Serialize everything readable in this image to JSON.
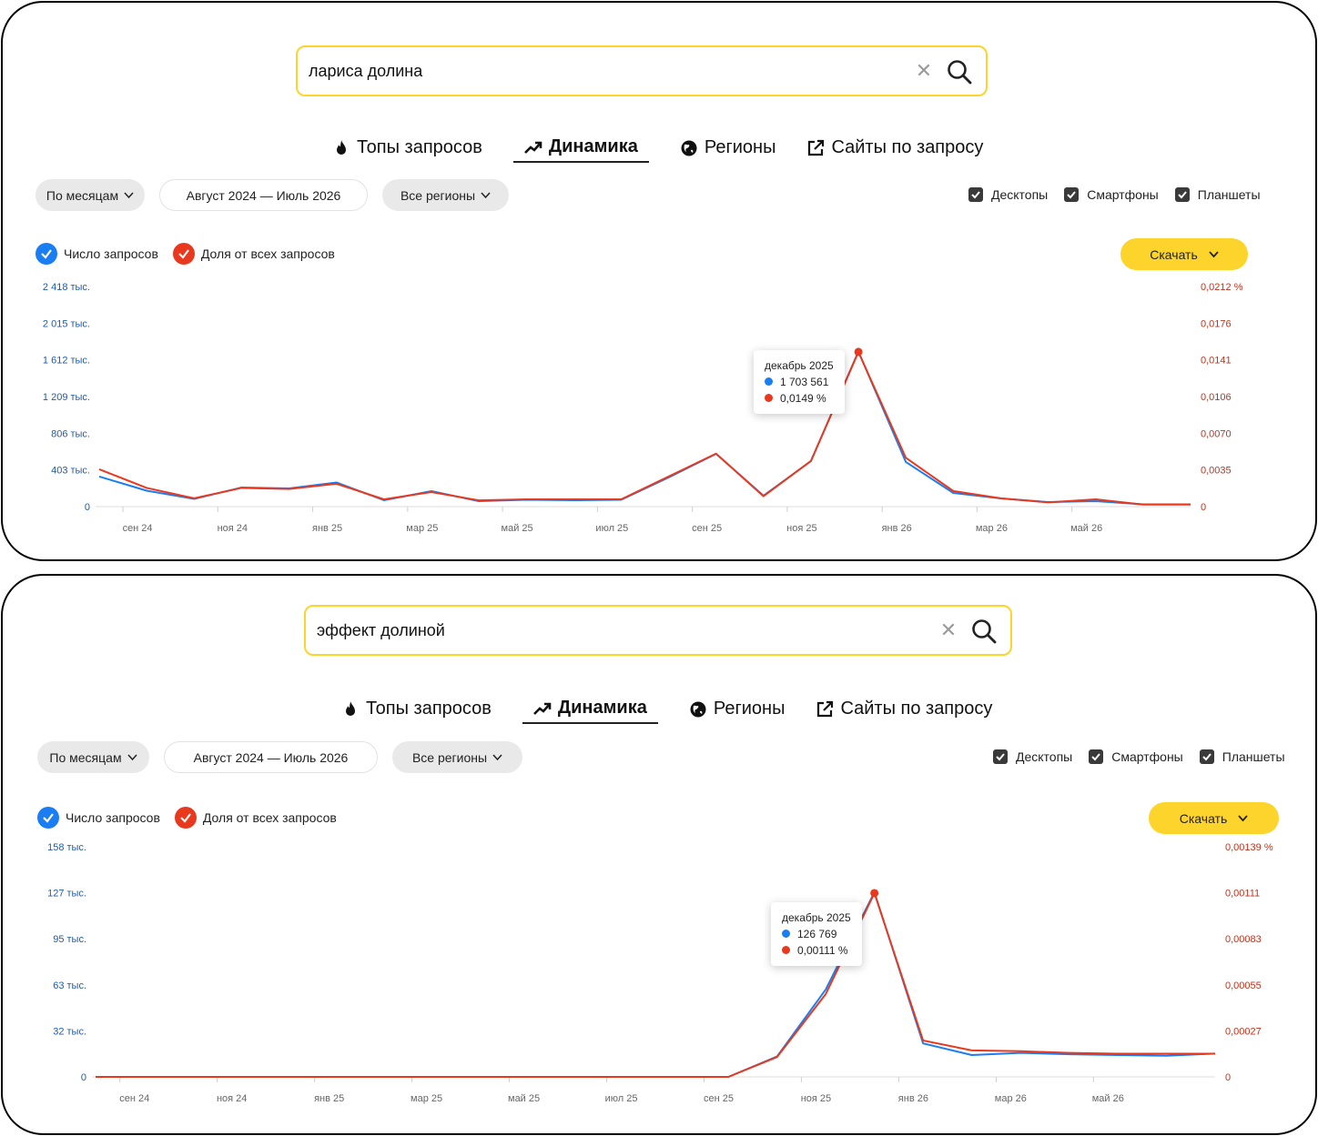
{
  "colors": {
    "count": "#1a7ef2",
    "share": "#e8391f",
    "accent": "#fdd42c"
  },
  "tabs": [
    {
      "label": "Топы запросов",
      "icon": "fire-icon"
    },
    {
      "label": "Динамика",
      "icon": "trend-icon",
      "active": true
    },
    {
      "label": "Регионы",
      "icon": "globe-icon"
    },
    {
      "label": "Сайты по запросу",
      "icon": "external-link-icon"
    }
  ],
  "panels": [
    {
      "search": {
        "value": "лариса долина"
      },
      "filters": {
        "period": "По месяцам",
        "range": "Август 2024 — Июль 2026",
        "regions": "Все регионы"
      },
      "devices": [
        "Десктопы",
        "Смартфоны",
        "Планшеты"
      ],
      "legend": {
        "count": "Число запросов",
        "share": "Доля от всех запросов"
      },
      "download": "Скачать",
      "tooltip": {
        "month": "декабрь 2025",
        "count": "1 703 561",
        "share": "0,0149 %"
      },
      "chart_data": {
        "type": "line",
        "x": [
          "авг 24",
          "сен 24",
          "окт 24",
          "ноя 24",
          "дек 24",
          "янв 25",
          "фев 25",
          "мар 25",
          "апр 25",
          "май 25",
          "июн 25",
          "июл 25",
          "авг 25",
          "сен 25",
          "окт 25",
          "ноя 25",
          "дек 25",
          "янв 26",
          "фев 26",
          "мар 26",
          "апр 26",
          "май 26",
          "июн 26",
          "июл 26"
        ],
        "x_ticks": [
          "сен 24",
          "ноя 24",
          "янв 25",
          "мар 25",
          "май 25",
          "июл 25",
          "сен 25",
          "ноя 25",
          "янв 26",
          "мар 26",
          "май 26"
        ],
        "y_left_ticks": [
          "0",
          "403 тыс.",
          "806 тыс.",
          "1 209 тыс.",
          "1 612 тыс.",
          "2 015 тыс.",
          "2 418 тыс."
        ],
        "y_right_ticks": [
          "0",
          "0,0035",
          "0,0070",
          "0,0106",
          "0,0141",
          "0,0176",
          "0,0212 %"
        ],
        "ylim_left": [
          0,
          2418000
        ],
        "ylim_right": [
          0,
          0.0212
        ],
        "series": [
          {
            "name": "Число запросов",
            "axis": "left",
            "values": [
              330000,
              175000,
              85000,
              210000,
              200000,
              265000,
              70000,
              170000,
              60000,
              75000,
              70000,
              75000,
              320000,
              580000,
              120000,
              500000,
              1703561,
              490000,
              150000,
              90000,
              50000,
              60000,
              25000,
              25000
            ]
          },
          {
            "name": "Доля от всех запросов",
            "axis": "right",
            "values": [
              0.0036,
              0.0018,
              0.0008,
              0.0018,
              0.0017,
              0.0022,
              0.0007,
              0.0014,
              0.0006,
              0.0007,
              0.0007,
              0.0007,
              0.0029,
              0.0051,
              0.001,
              0.0044,
              0.0149,
              0.0047,
              0.0015,
              0.0008,
              0.0004,
              0.0007,
              0.0002,
              0.0002
            ]
          }
        ]
      }
    },
    {
      "search": {
        "value": "эффект долиной"
      },
      "filters": {
        "period": "По месяцам",
        "range": "Август 2024 — Июль 2026",
        "regions": "Все регионы"
      },
      "devices": [
        "Десктопы",
        "Смартфоны",
        "Планшеты"
      ],
      "legend": {
        "count": "Число запросов",
        "share": "Доля от всех запросов"
      },
      "download": "Скачать",
      "tooltip": {
        "month": "декабрь 2025",
        "count": "126 769",
        "share": "0,00111 %"
      },
      "chart_data": {
        "type": "line",
        "x": [
          "авг 24",
          "сен 24",
          "окт 24",
          "ноя 24",
          "дек 24",
          "янв 25",
          "фев 25",
          "мар 25",
          "апр 25",
          "май 25",
          "июн 25",
          "июл 25",
          "авг 25",
          "сен 25",
          "окт 25",
          "ноя 25",
          "дек 25",
          "янв 26",
          "фев 26",
          "мар 26",
          "апр 26",
          "май 26",
          "июн 26",
          "июл 26"
        ],
        "x_ticks": [
          "сен 24",
          "ноя 24",
          "янв 25",
          "мар 25",
          "май 25",
          "июл 25",
          "сен 25",
          "ноя 25",
          "янв 26",
          "мар 26",
          "май 26"
        ],
        "y_left_ticks": [
          "0",
          "32 тыс.",
          "63 тыс.",
          "95 тыс.",
          "127 тыс.",
          "158 тыс."
        ],
        "y_right_ticks": [
          "0",
          "0,00027",
          "0,00055",
          "0,00083",
          "0,00111",
          "0,00139 %"
        ],
        "ylim_left": [
          0,
          158000
        ],
        "ylim_right": [
          0,
          0.00139
        ],
        "series": [
          {
            "name": "Число запросов",
            "axis": "left",
            "values": [
              0,
              0,
              0,
              0,
              0,
              0,
              0,
              0,
              0,
              0,
              0,
              0,
              0,
              0,
              14000,
              60000,
              126769,
              23000,
              15000,
              16500,
              15500,
              15000,
              14500,
              16000
            ]
          },
          {
            "name": "Доля от всех запросов",
            "axis": "right",
            "values": [
              0,
              0,
              0,
              0,
              0,
              0,
              0,
              0,
              0,
              0,
              0,
              0,
              0,
              0,
              0.00012,
              0.0005,
              0.00111,
              0.00022,
              0.00016,
              0.000155,
              0.000145,
              0.00014,
              0.00014,
              0.00014
            ]
          }
        ]
      }
    }
  ]
}
